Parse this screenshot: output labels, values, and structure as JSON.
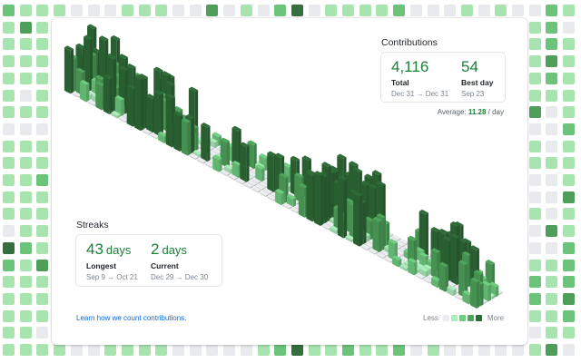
{
  "colors": {
    "levels": [
      "#ebedf0",
      "#aceebb",
      "#6fce80",
      "#4fa55c",
      "#2f6b38"
    ],
    "bg_levels": [
      "#e8eaed",
      "#a8e4b0",
      "#6cc47a",
      "#4f9e5a",
      "#356f3e"
    ],
    "accent_green": "#1a7f37",
    "link_blue": "#0969da"
  },
  "contributions": {
    "title": "Contributions",
    "total": {
      "value": "4,116",
      "label": "Total",
      "range": "Dec 31 → Dec 31"
    },
    "best_day": {
      "value": "54",
      "label": "Best day",
      "range": "Sep 23"
    },
    "average": {
      "label": "Average:",
      "value": "11.28",
      "unit": "/ day"
    }
  },
  "streaks": {
    "title": "Streaks",
    "longest": {
      "value": "43",
      "unit": "days",
      "label": "Longest",
      "range": "Sep 9 → Oct 21"
    },
    "current": {
      "value": "2",
      "unit": "days",
      "label": "Current",
      "range": "Dec 29 → Dec 30"
    }
  },
  "footer": {
    "learn_link": "Learn how we count contributions.",
    "legend_less": "Less",
    "legend_more": "More"
  },
  "background_grid": {
    "cols": 34,
    "rows": 21,
    "top_row": [
      2,
      1,
      1,
      1,
      0,
      0,
      0,
      1,
      1,
      1,
      0,
      0,
      3,
      0,
      1,
      0,
      2,
      4,
      0,
      1,
      1,
      1,
      1,
      2,
      0,
      0,
      0,
      1,
      0,
      1,
      0,
      0,
      2,
      1
    ],
    "bottom_row": [
      1,
      1,
      1,
      1,
      0,
      0,
      1,
      1,
      1,
      1,
      0,
      0,
      0,
      0,
      0,
      1,
      2,
      4,
      1,
      1,
      2,
      1,
      1,
      2,
      0,
      1,
      0,
      0,
      0,
      0,
      0,
      1,
      3,
      0
    ],
    "left_cols": [
      [
        2,
        1,
        1
      ],
      [
        1,
        3,
        1
      ],
      [
        1,
        1,
        1
      ],
      [
        1,
        1,
        1
      ],
      [
        1,
        1,
        1
      ],
      [
        1,
        0,
        1
      ],
      [
        1,
        1,
        1
      ],
      [
        0,
        0,
        0
      ],
      [
        1,
        1,
        1
      ],
      [
        1,
        1,
        1
      ],
      [
        1,
        1,
        2
      ],
      [
        1,
        1,
        1
      ],
      [
        1,
        1,
        1
      ],
      [
        0,
        1,
        1
      ],
      [
        4,
        2,
        1
      ],
      [
        2,
        1,
        3
      ],
      [
        1,
        1,
        1
      ],
      [
        1,
        1,
        1
      ],
      [
        1,
        1,
        1
      ],
      [
        1,
        1,
        0
      ],
      [
        1,
        1,
        1
      ]
    ],
    "right_cols": [
      [
        0,
        2,
        1
      ],
      [
        1,
        2,
        0
      ],
      [
        1,
        2,
        1
      ],
      [
        1,
        3,
        1
      ],
      [
        1,
        2,
        1
      ],
      [
        1,
        1,
        1
      ],
      [
        3,
        0,
        1
      ],
      [
        0,
        0,
        2
      ],
      [
        1,
        0,
        1
      ],
      [
        1,
        1,
        1
      ],
      [
        0,
        0,
        1
      ],
      [
        0,
        0,
        3
      ],
      [
        1,
        0,
        1
      ],
      [
        0,
        3,
        1
      ],
      [
        0,
        0,
        2
      ],
      [
        1,
        1,
        2
      ],
      [
        2,
        1,
        2
      ],
      [
        2,
        1,
        3
      ],
      [
        1,
        1,
        2
      ],
      [
        0,
        1,
        1
      ],
      [
        1,
        3,
        0
      ]
    ]
  },
  "chart_data": {
    "type": "isometric-3d-bar",
    "title": "Contributions",
    "x_axis": "week of year (53 weeks)",
    "y_axis": "day of week (7 days)",
    "z_axis": "contribution count",
    "summary": {
      "total": 4116,
      "best_day": 54,
      "best_day_date": "Sep 23",
      "average_per_day": 11.28,
      "longest_streak_days": 43,
      "longest_streak_range": "Sep 9 → Oct 21",
      "current_streak_days": 2,
      "current_streak_range": "Dec 29 → Dec 30",
      "period": "Dec 31 → Dec 31"
    },
    "legend": [
      "Less",
      "level-0",
      "level-1",
      "level-2",
      "level-3",
      "level-4",
      "More"
    ]
  }
}
